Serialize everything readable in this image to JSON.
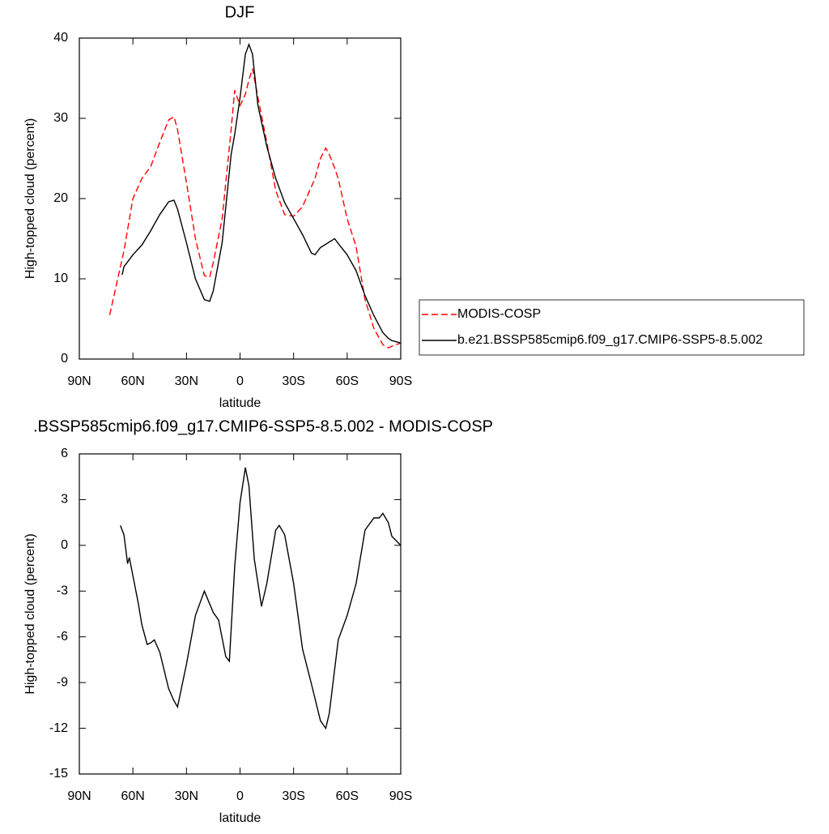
{
  "chart_data": [
    {
      "type": "line",
      "title": "DJF",
      "xlabel": "latitude",
      "ylabel": "High-topped cloud (percent)",
      "x": [
        73,
        70,
        66,
        65,
        60,
        55,
        50,
        45,
        40,
        37,
        35,
        30,
        25,
        20,
        17,
        15,
        10,
        5,
        3,
        0,
        -3,
        -5,
        -7,
        -10,
        -15,
        -20,
        -25,
        -30,
        -35,
        -40,
        -42,
        -45,
        -48,
        -50,
        -53,
        -55,
        -60,
        -65,
        -70,
        -75,
        -80,
        -83,
        -85,
        -90
      ],
      "series": [
        {
          "name": "MODIS-COSP",
          "color": "#ff0000",
          "line_style": "dashed",
          "values": [
            5.5,
            8.5,
            12.5,
            13.5,
            20,
            22.5,
            24,
            27,
            29.8,
            30.2,
            28.6,
            22,
            15,
            10.4,
            10.2,
            12,
            17.5,
            28.6,
            33.5,
            31.6,
            33,
            34.8,
            36.2,
            32.6,
            27,
            21,
            18,
            17.8,
            19,
            21.5,
            22.5,
            25,
            26.3,
            25.5,
            23.8,
            22.5,
            17.5,
            14,
            7.4,
            3.8,
            1.8,
            1.4,
            1.6,
            2
          ]
        },
        {
          "name": "b.e21.BSSP585cmip6.f09_g17.CMIP6-SSP5-8.5.002",
          "color": "#000000",
          "line_style": "solid",
          "values": [
            null,
            null,
            10.5,
            11.5,
            13,
            14.2,
            16,
            18,
            19.6,
            19.8,
            18.7,
            14.5,
            10,
            7.4,
            7.2,
            8.5,
            14.5,
            25.5,
            28,
            32.6,
            38,
            39.2,
            38,
            31.6,
            26.5,
            22.5,
            19.5,
            17.5,
            15.5,
            13.2,
            13,
            13.9,
            14.3,
            14.6,
            15,
            14.4,
            13,
            11,
            7.9,
            5.4,
            3.3,
            2.6,
            2.3,
            2
          ]
        }
      ],
      "xlim": [
        90,
        -90
      ],
      "xticks": [
        {
          "value": 90,
          "label": "90N"
        },
        {
          "value": 60,
          "label": "60N"
        },
        {
          "value": 30,
          "label": "30N"
        },
        0,
        {
          "value": -30,
          "label": "30S"
        },
        {
          "value": -60,
          "label": "60S"
        },
        {
          "value": -90,
          "label": "90S"
        }
      ],
      "ylim": [
        0,
        40
      ],
      "yticks": [
        0,
        10,
        20,
        30,
        40
      ],
      "legend": "right"
    },
    {
      "type": "line",
      "title": ".BSSP585cmip6.f09_g17.CMIP6-SSP5-8.5.002 - MODIS-COSP",
      "xlabel": "latitude",
      "ylabel": "High-topped cloud (percent)",
      "x": [
        67,
        65,
        63,
        62,
        60,
        57,
        55,
        52,
        50,
        48,
        45,
        40,
        37,
        35,
        30,
        25,
        20,
        15,
        12,
        8,
        6,
        3,
        0,
        -3,
        -5,
        -8,
        -12,
        -15,
        -20,
        -22,
        -25,
        -30,
        -35,
        -40,
        -45,
        -48,
        -50,
        -55,
        -60,
        -65,
        -68,
        -70,
        -75,
        -78,
        -80,
        -83,
        -85,
        -90
      ],
      "series": [
        {
          "color": "#000000",
          "line_style": "solid",
          "values": [
            1.3,
            0.7,
            -1.2,
            -0.8,
            -2,
            -3.8,
            -5.2,
            -6.5,
            -6.4,
            -6.2,
            -7,
            -9.4,
            -10.2,
            -10.6,
            -7.8,
            -4.6,
            -3,
            -4.4,
            -4.9,
            -7.3,
            -7.6,
            -1.4,
            2.8,
            5.1,
            3.9,
            -0.9,
            -4,
            -2.5,
            1,
            1.3,
            0.7,
            -2.5,
            -6.8,
            -9.1,
            -11.5,
            -12,
            -11,
            -6.2,
            -4.6,
            -2.5,
            -0.4,
            1,
            1.8,
            1.8,
            2.1,
            1.5,
            0.6,
            0
          ]
        }
      ],
      "xlim": [
        90,
        -90
      ],
      "xticks": [
        {
          "value": 90,
          "label": "90N"
        },
        {
          "value": 60,
          "label": "60N"
        },
        {
          "value": 30,
          "label": "30N"
        },
        0,
        {
          "value": -30,
          "label": "30S"
        },
        {
          "value": -60,
          "label": "60S"
        },
        {
          "value": -90,
          "label": "90S"
        }
      ],
      "ylim": [
        -15,
        6
      ],
      "yticks": [
        6,
        3,
        0,
        -3,
        -6,
        -9,
        -12,
        -15
      ]
    }
  ]
}
